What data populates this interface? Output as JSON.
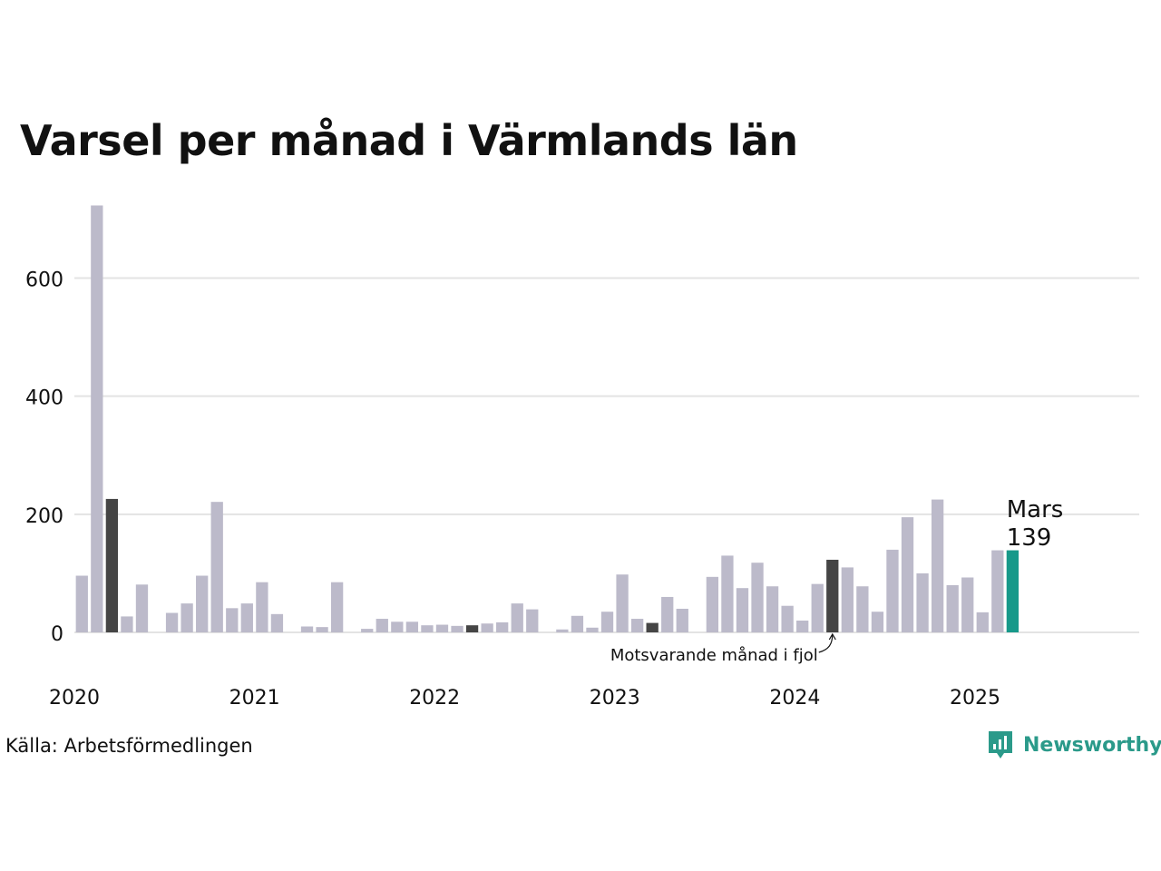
{
  "title": "Varsel per månad i Värmlands län",
  "source": "Källa: Arbetsförmedlingen",
  "brand": {
    "name": "Newsworthy",
    "icon": "newsworthy-logo-icon",
    "color": "#2b9a8a"
  },
  "colors": {
    "default": "#bcbaca",
    "same_month": "#454545",
    "current": "#17998a",
    "grid": "#e3e3e3"
  },
  "chart_data": {
    "type": "bar",
    "title": "Varsel per månad i Värmlands län",
    "xlabel": "",
    "ylabel": "",
    "ylim": [
      0,
      725
    ],
    "yticks": [
      0,
      200,
      400,
      600
    ],
    "xticks": [
      {
        "label": "2020",
        "date": "2020-01"
      },
      {
        "label": "2021",
        "date": "2021-01"
      },
      {
        "label": "2022",
        "date": "2022-01"
      },
      {
        "label": "2023",
        "date": "2023-01"
      },
      {
        "label": "2024",
        "date": "2024-01"
      },
      {
        "label": "2025",
        "date": "2025-01"
      }
    ],
    "grid": true,
    "months": [
      "2020-01",
      "2020-02",
      "2020-03",
      "2020-04",
      "2020-05",
      "2020-06",
      "2020-07",
      "2020-08",
      "2020-09",
      "2020-10",
      "2020-11",
      "2020-12",
      "2021-01",
      "2021-02",
      "2021-03",
      "2021-04",
      "2021-05",
      "2021-06",
      "2021-07",
      "2021-08",
      "2021-09",
      "2021-10",
      "2021-11",
      "2021-12",
      "2022-01",
      "2022-02",
      "2022-03",
      "2022-04",
      "2022-05",
      "2022-06",
      "2022-07",
      "2022-08",
      "2022-09",
      "2022-10",
      "2022-11",
      "2022-12",
      "2023-01",
      "2023-02",
      "2023-03",
      "2023-04",
      "2023-05",
      "2023-06",
      "2023-07",
      "2023-08",
      "2023-09",
      "2023-10",
      "2023-11",
      "2023-12",
      "2024-01",
      "2024-02",
      "2024-03",
      "2024-04",
      "2024-05",
      "2024-06",
      "2024-07",
      "2024-08",
      "2024-09",
      "2024-10",
      "2024-11",
      "2024-12",
      "2025-01",
      "2025-02",
      "2025-03"
    ],
    "values": [
      96,
      723,
      226,
      27,
      81,
      0,
      33,
      49,
      96,
      221,
      41,
      49,
      85,
      31,
      0,
      10,
      9,
      85,
      0,
      6,
      23,
      18,
      18,
      12,
      13,
      11,
      12,
      15,
      17,
      49,
      39,
      0,
      5,
      28,
      8,
      35,
      98,
      23,
      16,
      60,
      40,
      0,
      94,
      130,
      75,
      118,
      78,
      45,
      20,
      82,
      123,
      110,
      78,
      35,
      140,
      195,
      100,
      225,
      80,
      93,
      34,
      139,
      139
    ],
    "highlight_same_month": [
      "2020-03",
      "2021-03",
      "2022-03",
      "2023-03",
      "2024-03"
    ],
    "current_month": "2025-03",
    "current_label": {
      "month": "Mars",
      "value": "139"
    },
    "annotation": {
      "text": "Motsvarande månad i fjol",
      "target": "2024-03"
    }
  }
}
